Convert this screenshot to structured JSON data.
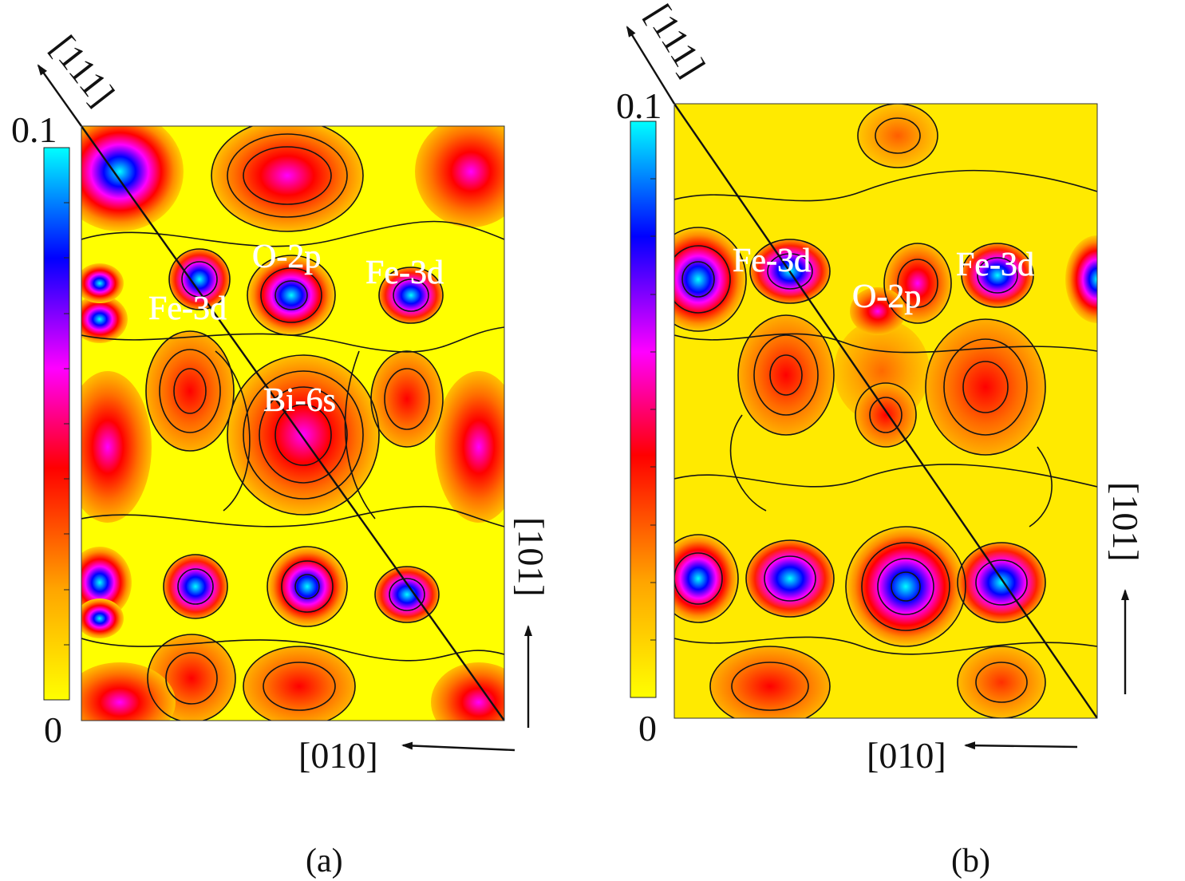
{
  "colorscale": {
    "max_label": "0.1",
    "min_label": "0",
    "stops": [
      "#ffff00",
      "#ffa500",
      "#ff0000",
      "#ff00ff",
      "#0000ff",
      "#00ffff"
    ]
  },
  "panels": [
    {
      "id": "a",
      "caption": "(a)",
      "directions": {
        "diagonal": "[111]",
        "vertical": "[101]",
        "horizontal": "[010]"
      },
      "sites": [
        "Fe-3d",
        "O-2p",
        "Fe-3d",
        "Bi-6s"
      ]
    },
    {
      "id": "b",
      "caption": "(b)",
      "directions": {
        "diagonal": "[111]",
        "vertical": "[101]",
        "horizontal": "[010]"
      },
      "sites": [
        "Fe-3d",
        "O-2p",
        "Fe-3d"
      ]
    }
  ]
}
